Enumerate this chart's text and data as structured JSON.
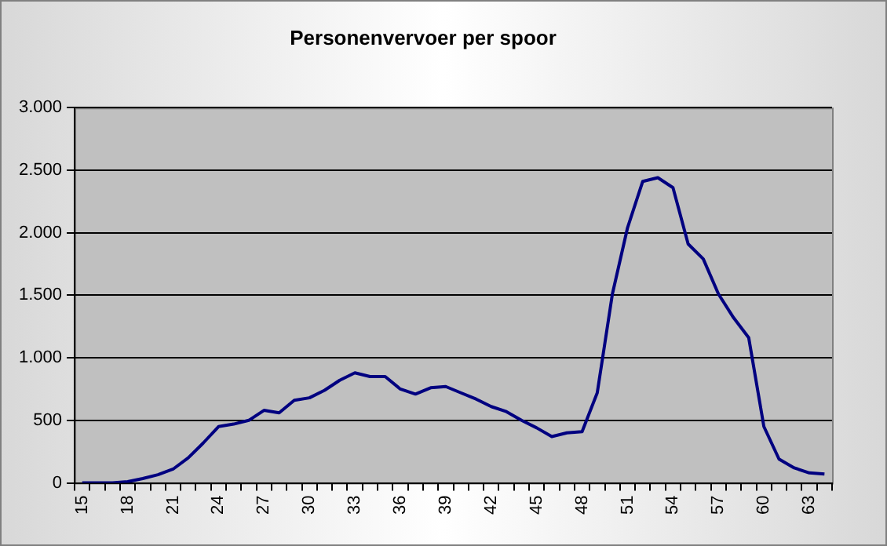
{
  "chart_data": {
    "type": "line",
    "title": "Personenvervoer per spoor",
    "categories": [
      "15",
      null,
      null,
      "18",
      null,
      null,
      "21",
      null,
      null,
      "24",
      null,
      null,
      "27",
      null,
      null,
      "30",
      null,
      null,
      "33",
      null,
      null,
      "36",
      null,
      null,
      "39",
      null,
      null,
      "42",
      null,
      null,
      "45",
      null,
      null,
      "48",
      null,
      null,
      "51",
      null,
      null,
      "54",
      null,
      null,
      "57",
      null,
      null,
      "60",
      null,
      null,
      "63",
      null
    ],
    "series": [
      {
        "color": "#000080",
        "values": [
          0,
          0,
          0,
          10,
          35,
          65,
          110,
          200,
          320,
          450,
          470,
          500,
          580,
          560,
          660,
          680,
          740,
          820,
          880,
          850,
          850,
          750,
          710,
          760,
          770,
          720,
          670,
          610,
          570,
          500,
          440,
          370,
          400,
          410,
          720,
          1510,
          2040,
          2410,
          2440,
          2360,
          1910,
          1790,
          1510,
          1320,
          1160,
          450,
          190,
          120,
          80,
          70
        ]
      }
    ],
    "ylim": [
      0,
      3000
    ],
    "yticks": [
      {
        "value": 0,
        "label": "0"
      },
      {
        "value": 500,
        "label": "500"
      },
      {
        "value": 1000,
        "label": "1.000"
      },
      {
        "value": 1500,
        "label": "1.500"
      },
      {
        "value": 2000,
        "label": "2.000"
      },
      {
        "value": 2500,
        "label": "2.500"
      },
      {
        "value": 3000,
        "label": "3.000"
      }
    ],
    "grid": "y",
    "legend": false,
    "marker": "none",
    "line_style": "solid"
  }
}
